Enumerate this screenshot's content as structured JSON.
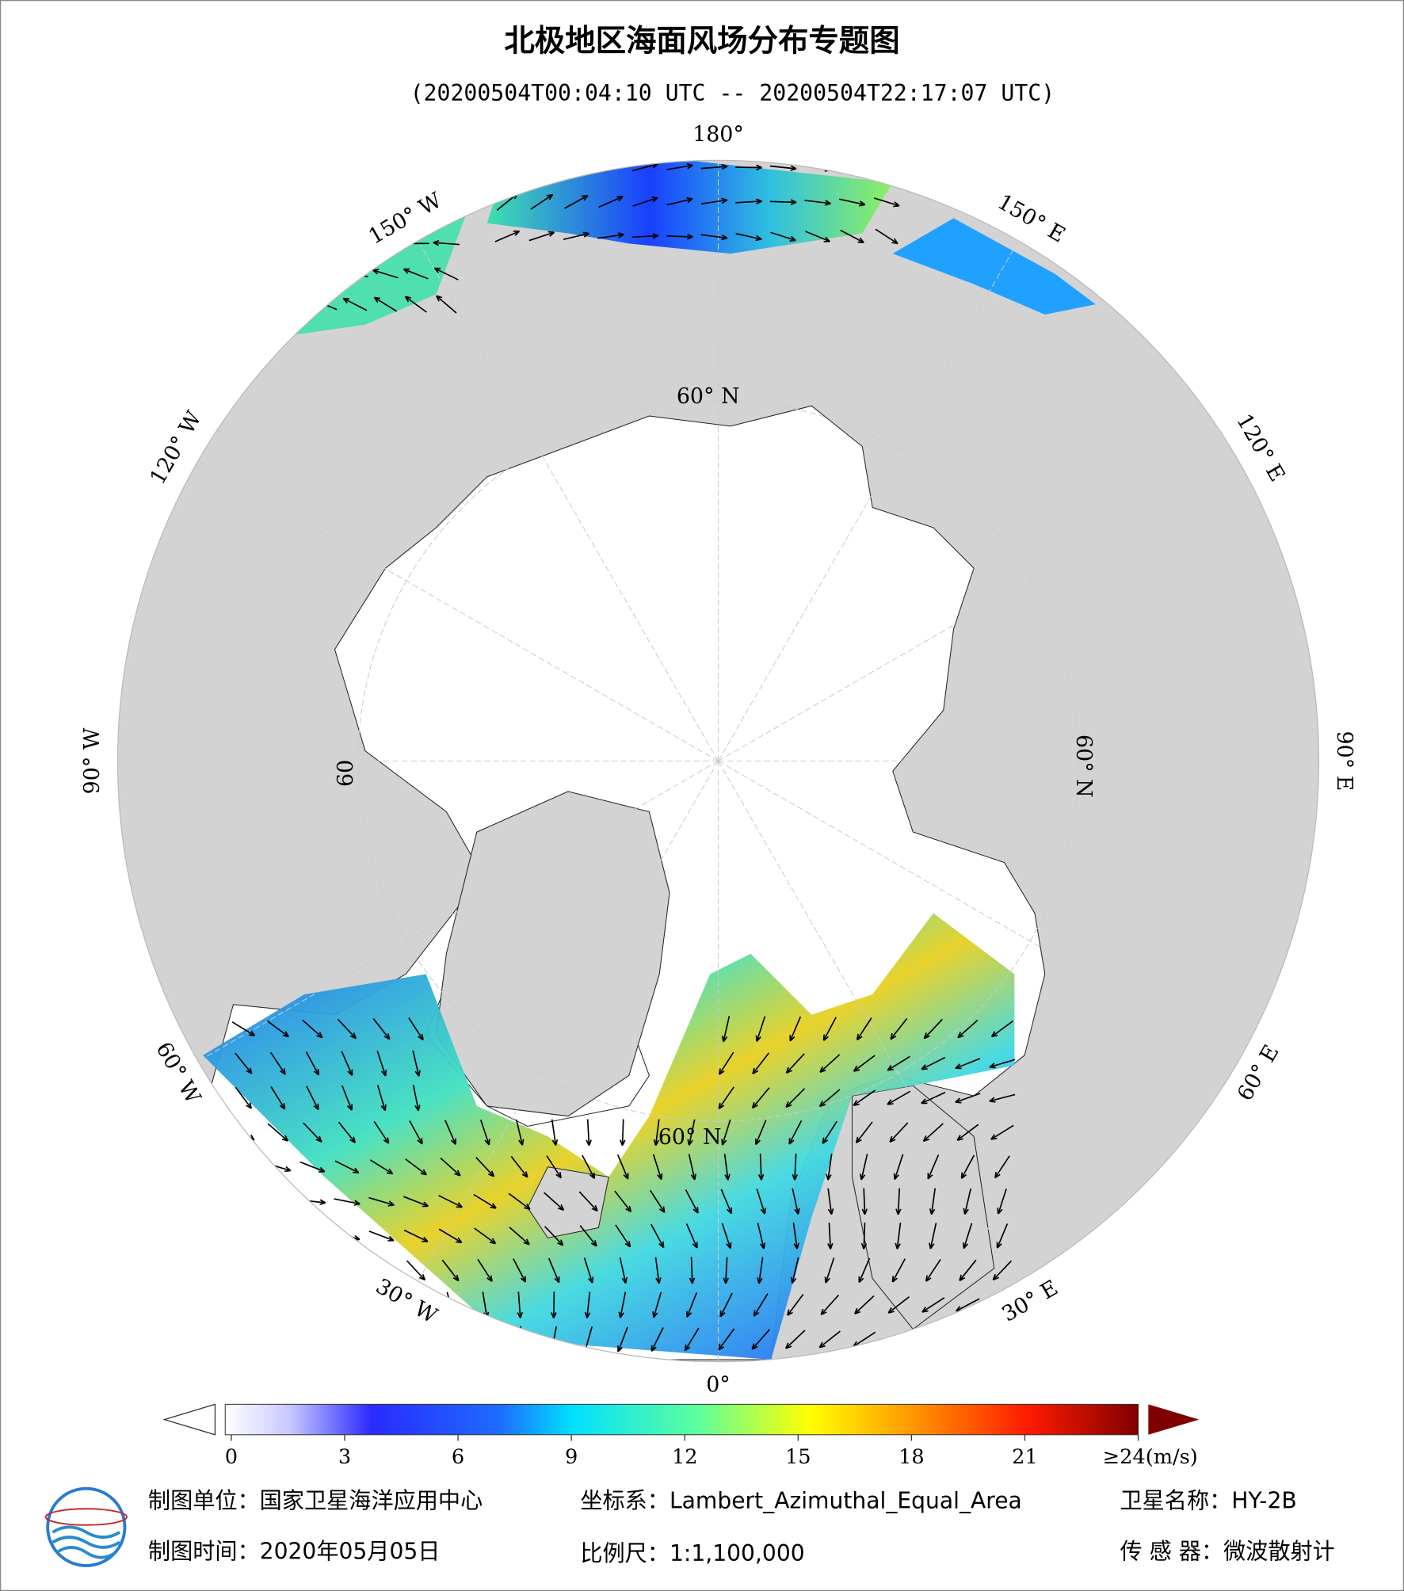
{
  "header": {
    "title": "北极地区海面风场分布专题图",
    "subtitle": "(20200504T00:04:10 UTC -- 20200504T22:17:07 UTC)"
  },
  "map": {
    "longitude_labels": [
      "180°",
      "150° E",
      "120° E",
      "90° E",
      "60° E",
      "30° E",
      "0°",
      "30° W",
      "60° W",
      "90° W",
      "120° W",
      "150° W"
    ],
    "latitude_labels": [
      "60° N",
      "60° N",
      "60° N",
      "60"
    ]
  },
  "colorbar": {
    "range": [
      0,
      24
    ],
    "ticks": [
      0,
      3,
      6,
      9,
      12,
      15,
      18,
      21,
      {
        "value": 24,
        "label": "≥24(m/s)"
      }
    ]
  },
  "footer": {
    "unit": "制图单位：国家卫星海洋应用中心",
    "coordinate_system": "坐标系：Lambert_Azimuthal_Equal_Area",
    "satellite": "卫星名称：HY-2B",
    "date": "制图时间：2020年05月05日",
    "scale": "比例尺：1:1,100,000",
    "sensor": "传 感 器：微波散射计"
  }
}
